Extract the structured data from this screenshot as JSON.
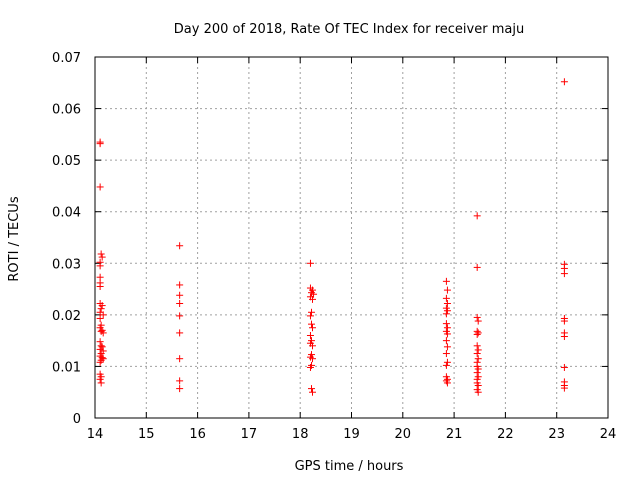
{
  "chart_data": {
    "type": "scatter",
    "title": "Day 200 of 2018, Rate Of TEC Index for receiver maju",
    "xlabel": "GPS time / hours",
    "ylabel": "ROTI / TECUs",
    "xlim": [
      14,
      24
    ],
    "ylim": [
      0,
      0.07
    ],
    "x_ticks": [
      "14",
      "15",
      "16",
      "17",
      "18",
      "19",
      "20",
      "21",
      "22",
      "23",
      "24"
    ],
    "y_ticks": [
      "0",
      "0.01",
      "0.02",
      "0.03",
      "0.04",
      "0.05",
      "0.06",
      "0.07"
    ],
    "grid": true,
    "marker": "+",
    "color": "#ff0000",
    "series": [
      {
        "name": "ROTI",
        "points": [
          [
            14.1,
            0.0535
          ],
          [
            14.1,
            0.0532
          ],
          [
            14.1,
            0.0448
          ],
          [
            14.12,
            0.0318
          ],
          [
            14.14,
            0.0312
          ],
          [
            14.1,
            0.0302
          ],
          [
            14.1,
            0.0295
          ],
          [
            14.1,
            0.0273
          ],
          [
            14.1,
            0.0262
          ],
          [
            14.1,
            0.0255
          ],
          [
            14.1,
            0.0222
          ],
          [
            14.14,
            0.0218
          ],
          [
            14.12,
            0.0212
          ],
          [
            14.1,
            0.0205
          ],
          [
            14.16,
            0.02
          ],
          [
            14.1,
            0.0193
          ],
          [
            14.12,
            0.018
          ],
          [
            14.1,
            0.0175
          ],
          [
            14.14,
            0.017
          ],
          [
            14.12,
            0.0168
          ],
          [
            14.16,
            0.0165
          ],
          [
            14.1,
            0.0148
          ],
          [
            14.12,
            0.014
          ],
          [
            14.14,
            0.0138
          ],
          [
            14.1,
            0.0133
          ],
          [
            14.16,
            0.013
          ],
          [
            14.12,
            0.0125
          ],
          [
            14.1,
            0.012
          ],
          [
            14.14,
            0.0117
          ],
          [
            14.16,
            0.0115
          ],
          [
            14.12,
            0.0112
          ],
          [
            14.1,
            0.0108
          ],
          [
            14.1,
            0.0085
          ],
          [
            14.12,
            0.008
          ],
          [
            14.1,
            0.0075
          ],
          [
            14.12,
            0.0068
          ],
          [
            15.65,
            0.0334
          ],
          [
            15.65,
            0.0258
          ],
          [
            15.65,
            0.0238
          ],
          [
            15.65,
            0.0222
          ],
          [
            15.65,
            0.0198
          ],
          [
            15.65,
            0.0165
          ],
          [
            15.65,
            0.0115
          ],
          [
            15.65,
            0.0072
          ],
          [
            15.65,
            0.0057
          ],
          [
            18.2,
            0.03
          ],
          [
            18.2,
            0.0252
          ],
          [
            18.24,
            0.0248
          ],
          [
            18.22,
            0.0243
          ],
          [
            18.26,
            0.024
          ],
          [
            18.2,
            0.0235
          ],
          [
            18.24,
            0.023
          ],
          [
            18.22,
            0.0205
          ],
          [
            18.2,
            0.0198
          ],
          [
            18.22,
            0.0182
          ],
          [
            18.24,
            0.0175
          ],
          [
            18.2,
            0.016
          ],
          [
            18.22,
            0.015
          ],
          [
            18.2,
            0.0145
          ],
          [
            18.24,
            0.014
          ],
          [
            18.22,
            0.0123
          ],
          [
            18.2,
            0.0118
          ],
          [
            18.24,
            0.0115
          ],
          [
            18.22,
            0.0102
          ],
          [
            18.2,
            0.0098
          ],
          [
            18.22,
            0.0057
          ],
          [
            18.24,
            0.005
          ],
          [
            20.85,
            0.0265
          ],
          [
            20.87,
            0.0248
          ],
          [
            20.85,
            0.0232
          ],
          [
            20.87,
            0.0222
          ],
          [
            20.85,
            0.0213
          ],
          [
            20.87,
            0.0208
          ],
          [
            20.85,
            0.0202
          ],
          [
            20.85,
            0.0183
          ],
          [
            20.87,
            0.0175
          ],
          [
            20.85,
            0.0168
          ],
          [
            20.87,
            0.0163
          ],
          [
            20.85,
            0.015
          ],
          [
            20.87,
            0.0138
          ],
          [
            20.85,
            0.0125
          ],
          [
            20.87,
            0.0108
          ],
          [
            20.85,
            0.0102
          ],
          [
            20.85,
            0.008
          ],
          [
            20.87,
            0.0075
          ],
          [
            20.85,
            0.0072
          ],
          [
            20.87,
            0.0068
          ],
          [
            21.45,
            0.0392
          ],
          [
            21.45,
            0.0292
          ],
          [
            21.45,
            0.0195
          ],
          [
            21.47,
            0.0188
          ],
          [
            21.45,
            0.0168
          ],
          [
            21.47,
            0.0165
          ],
          [
            21.45,
            0.0162
          ],
          [
            21.45,
            0.014
          ],
          [
            21.47,
            0.0132
          ],
          [
            21.45,
            0.0125
          ],
          [
            21.47,
            0.0115
          ],
          [
            21.45,
            0.0108
          ],
          [
            21.45,
            0.01
          ],
          [
            21.47,
            0.0095
          ],
          [
            21.45,
            0.0088
          ],
          [
            21.47,
            0.008
          ],
          [
            21.45,
            0.0075
          ],
          [
            21.45,
            0.0068
          ],
          [
            21.47,
            0.0063
          ],
          [
            21.45,
            0.0055
          ],
          [
            21.47,
            0.005
          ],
          [
            23.15,
            0.0652
          ],
          [
            23.15,
            0.0298
          ],
          [
            23.15,
            0.029
          ],
          [
            23.15,
            0.028
          ],
          [
            23.15,
            0.0193
          ],
          [
            23.15,
            0.0188
          ],
          [
            23.15,
            0.0165
          ],
          [
            23.15,
            0.0158
          ],
          [
            23.15,
            0.0098
          ],
          [
            23.15,
            0.007
          ],
          [
            23.15,
            0.0063
          ],
          [
            23.15,
            0.0058
          ]
        ]
      }
    ]
  }
}
